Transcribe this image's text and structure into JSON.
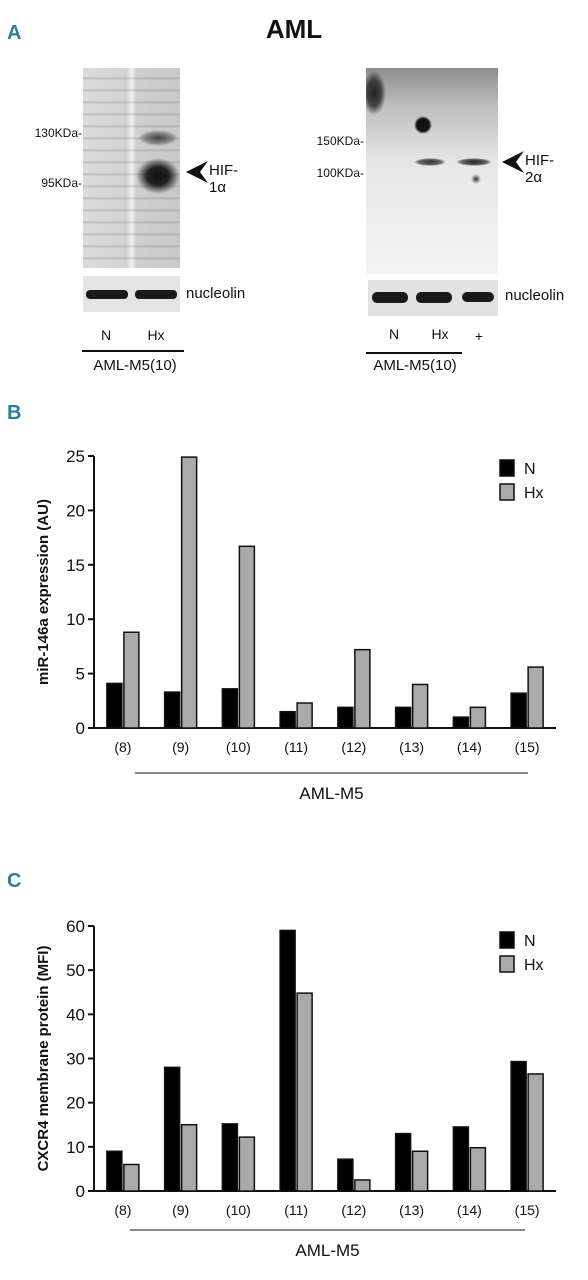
{
  "figure_title": "AML",
  "panels": {
    "A": "A",
    "B": "B",
    "C": "C"
  },
  "blot_left": {
    "markers": [
      "130KDa-",
      "95KDa-"
    ],
    "target": "HIF-1α",
    "loading": "nucleolin",
    "lanes": [
      "N",
      "Hx"
    ],
    "sample": "AML-M5(10)"
  },
  "blot_right": {
    "markers": [
      "150KDa-",
      "100KDa-"
    ],
    "target": "HIF-2α",
    "loading": "nucleolin",
    "lanes": [
      "N",
      "Hx",
      "+"
    ],
    "sample": "AML-M5(10)"
  },
  "chart_data": [
    {
      "type": "bar",
      "panel": "B",
      "categories": [
        "(8)",
        "(9)",
        "(10)",
        "(11)",
        "(12)",
        "(13)",
        "(14)",
        "(15)"
      ],
      "series": [
        {
          "name": "N",
          "color": "#000000",
          "values": [
            4.1,
            3.3,
            3.6,
            1.5,
            1.9,
            1.9,
            1.0,
            3.2
          ]
        },
        {
          "name": "Hx",
          "color": "#aaaaaa",
          "values": [
            8.8,
            24.9,
            16.7,
            2.3,
            7.2,
            4.0,
            1.9,
            5.6
          ]
        }
      ],
      "ylabel": "miR-146a expression (AU)",
      "xlabel": "AML-M5",
      "ylim": [
        0,
        25
      ],
      "yticks": [
        0,
        5,
        10,
        15,
        20,
        25
      ],
      "legend": "top-right"
    },
    {
      "type": "bar",
      "panel": "C",
      "categories": [
        "(8)",
        "(9)",
        "(10)",
        "(11)",
        "(12)",
        "(13)",
        "(14)",
        "(15)"
      ],
      "series": [
        {
          "name": "N",
          "color": "#000000",
          "values": [
            9.0,
            28.0,
            15.2,
            59.0,
            7.2,
            13.0,
            14.5,
            29.3
          ]
        },
        {
          "name": "Hx",
          "color": "#aaaaaa",
          "values": [
            6.0,
            15.0,
            12.2,
            44.8,
            2.5,
            9.0,
            9.8,
            26.5
          ]
        }
      ],
      "ylabel": "CXCR4 membrane protein (MFI)",
      "xlabel": "AML-M5",
      "ylim": [
        0,
        60
      ],
      "yticks": [
        0,
        10,
        20,
        30,
        40,
        50,
        60
      ],
      "legend": "top-right"
    }
  ]
}
